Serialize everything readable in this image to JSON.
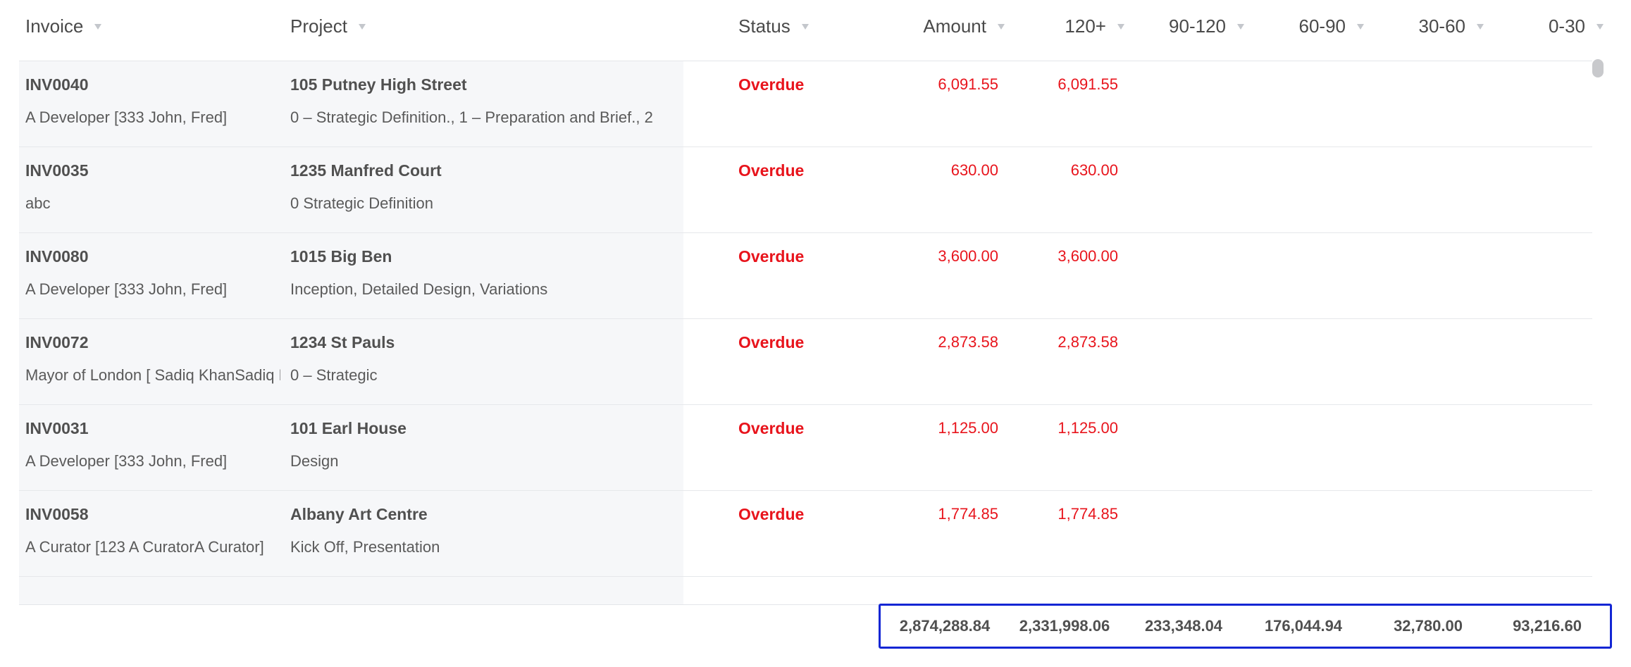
{
  "columns": {
    "invoice": "Invoice",
    "project": "Project",
    "status": "Status",
    "amount": "Amount",
    "b120": "120+",
    "b90_120": "90-120",
    "b60_90": "60-90",
    "b30_60": "30-60",
    "b0_30": "0-30"
  },
  "rows": [
    {
      "invoice": "INV0040",
      "client": "A Developer [333 John, Fred]",
      "project": "105 Putney High Street",
      "stages": "0 – Strategic Definition., 1 – Preparation and Brief., 2",
      "status": "Overdue",
      "amount": "6,091.55",
      "b120": "6,091.55"
    },
    {
      "invoice": "INV0035",
      "client": "abc",
      "project": "1235 Manfred Court",
      "stages": "0 Strategic Definition",
      "status": "Overdue",
      "amount": "630.00",
      "b120": "630.00"
    },
    {
      "invoice": "INV0080",
      "client": "A Developer [333 John, Fred]",
      "project": "1015 Big Ben",
      "stages": "Inception, Detailed Design, Variations",
      "status": "Overdue",
      "amount": "3,600.00",
      "b120": "3,600.00"
    },
    {
      "invoice": "INV0072",
      "client": "Mayor of London [ Sadiq KhanSadiq Khan]",
      "project": "1234 St Pauls",
      "stages": "0 – Strategic",
      "status": "Overdue",
      "amount": "2,873.58",
      "b120": "2,873.58"
    },
    {
      "invoice": "INV0031",
      "client": "A Developer [333 John, Fred]",
      "project": "101 Earl House",
      "stages": "Design",
      "status": "Overdue",
      "amount": "1,125.00",
      "b120": "1,125.00"
    },
    {
      "invoice": "INV0058",
      "client": "A Curator [123 A CuratorA Curator]",
      "project": "Albany Art Centre",
      "stages": "Kick Off, Presentation",
      "status": "Overdue",
      "amount": "1,774.85",
      "b120": "1,774.85"
    }
  ],
  "totals": {
    "amount": "2,874,288.84",
    "b120": "2,331,998.06",
    "b90_120": "233,348.04",
    "b60_90": "176,044.94",
    "b30_60": "32,780.00",
    "b0_30": "93,216.60"
  },
  "colors": {
    "overdue": "#e8141c",
    "highlight_border": "#1326d4"
  },
  "icons": {
    "sort": "sort-caret-icon"
  }
}
